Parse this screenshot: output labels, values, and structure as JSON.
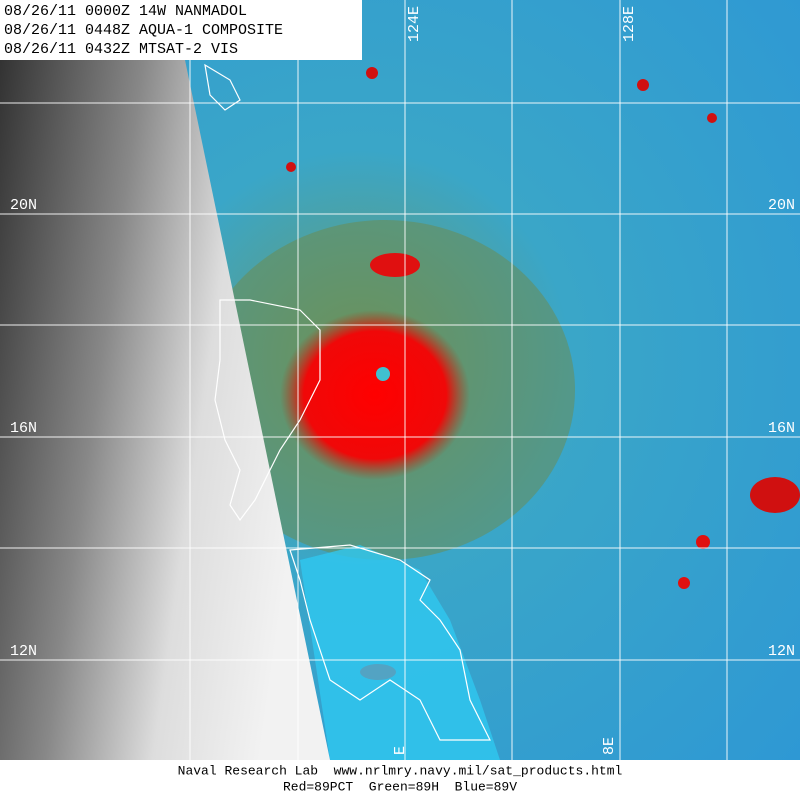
{
  "header": {
    "lines": [
      "08/26/11 0000Z 14W NANMADOL",
      "08/26/11 0448Z AQUA-1 COMPOSITE",
      "08/26/11 0432Z MTSAT-2 VIS"
    ]
  },
  "lat_labels": {
    "left": [
      "20N",
      "16N",
      "12N"
    ],
    "right": [
      "20N",
      "16N",
      "12N"
    ]
  },
  "lon_labels": {
    "top": [
      "124E",
      "128E"
    ],
    "bottom": [
      "E",
      "8E"
    ]
  },
  "footer": {
    "lines": [
      "Naval Research Lab  www.nrlmry.navy.mil/sat_products.html",
      "Red=89PCT  Green=89H  Blue=89V"
    ]
  }
}
